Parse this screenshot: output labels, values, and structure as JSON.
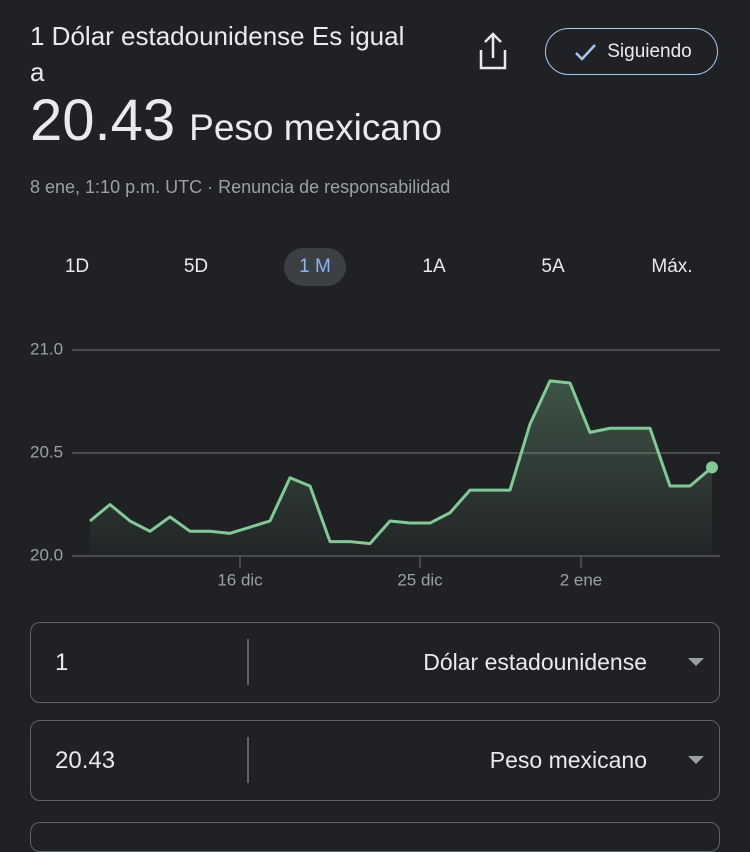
{
  "header": {
    "title": "1 Dólar estadounidense Es igual a",
    "amount": "20.43",
    "currency": "Peso mexicano",
    "timestamp": "8 ene, 1:10 p.m. UTC · Renuncia de responsabilidad",
    "follow_button": "Siguiendo"
  },
  "tabs": {
    "items": [
      "1D",
      "5D",
      "1 M",
      "1A",
      "5A",
      "Máx."
    ],
    "selected": 2
  },
  "chart_data": {
    "type": "line",
    "x": [
      0,
      1,
      2,
      3,
      4,
      5,
      6,
      7,
      8,
      9,
      10,
      11,
      12,
      13,
      14,
      15,
      16,
      17,
      18,
      19,
      20,
      21,
      22,
      23,
      24,
      25,
      26,
      27,
      28,
      29,
      30,
      31.1
    ],
    "values": [
      20.17,
      20.25,
      20.17,
      20.12,
      20.19,
      20.12,
      20.12,
      20.11,
      20.14,
      20.17,
      20.38,
      20.34,
      20.07,
      20.07,
      20.06,
      20.17,
      20.16,
      20.16,
      20.21,
      20.32,
      20.32,
      20.32,
      20.64,
      20.85,
      20.84,
      20.6,
      20.62,
      20.62,
      20.62,
      20.34,
      20.34,
      20.43
    ],
    "color": "#81c995",
    "xlim": [
      0,
      31.1
    ],
    "xticks": [
      {
        "value": 7.5,
        "label": "16 dic"
      },
      {
        "value": 16.5,
        "label": "25 dic"
      },
      {
        "value": 24.55,
        "label": "2 ene"
      }
    ],
    "ylim": [
      20,
      21
    ],
    "yticks": [
      {
        "value": 20,
        "label": "20.0"
      },
      {
        "value": 20.5,
        "label": "20.5"
      },
      {
        "value": 21,
        "label": "21.0"
      }
    ],
    "grid": true
  },
  "converter": {
    "rows": [
      {
        "amount": "1",
        "currency": "Dólar estadounidense"
      },
      {
        "amount": "20.43",
        "currency": "Peso mexicano"
      }
    ]
  }
}
